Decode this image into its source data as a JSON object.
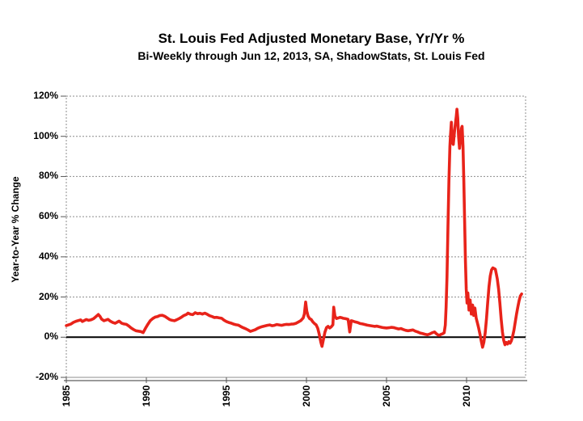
{
  "chart_data": {
    "type": "line",
    "title": "St. Louis Fed Adjusted Monetary Base, Yr/Yr %",
    "subtitle": "Bi-Weekly through Jun 12, 2013, SA, ShadowStats, St. Louis Fed",
    "ylabel": "Year-to-Year % Change",
    "xlabel": "",
    "x_ticks": [
      1985,
      1990,
      1995,
      2000,
      2005,
      2010
    ],
    "y_ticks": [
      "120%",
      "100%",
      "80%",
      "60%",
      "40%",
      "20%",
      "0%",
      "-20%"
    ],
    "y_tick_values": [
      120,
      100,
      80,
      60,
      40,
      20,
      0,
      -20
    ],
    "ylim": [
      -20,
      120
    ],
    "xlim": [
      1985,
      2013.7
    ],
    "grid": "horizontal dotted gray lines every 20%, solid black zero line, dotted frame",
    "legend": "none",
    "line_color": "#e8231a",
    "zero_line_color": "#000000",
    "series": [
      {
        "name": "St. Louis Fed Adjusted Monetary Base, Yr/Yr % Change",
        "points": [
          [
            1985.0,
            5.8
          ],
          [
            1985.15,
            6.2
          ],
          [
            1985.3,
            6.6
          ],
          [
            1985.45,
            7.4
          ],
          [
            1985.6,
            7.9
          ],
          [
            1985.75,
            8.3
          ],
          [
            1985.9,
            8.6
          ],
          [
            1986.0,
            7.8
          ],
          [
            1986.1,
            8.2
          ],
          [
            1986.25,
            8.8
          ],
          [
            1986.4,
            8.4
          ],
          [
            1986.55,
            8.7
          ],
          [
            1986.7,
            9.2
          ],
          [
            1986.85,
            10.2
          ],
          [
            1987.0,
            11.3
          ],
          [
            1987.1,
            10.4
          ],
          [
            1987.2,
            9.0
          ],
          [
            1987.35,
            8.2
          ],
          [
            1987.5,
            8.6
          ],
          [
            1987.6,
            8.9
          ],
          [
            1987.75,
            8.0
          ],
          [
            1987.9,
            7.3
          ],
          [
            1988.05,
            6.9
          ],
          [
            1988.2,
            7.6
          ],
          [
            1988.3,
            8.0
          ],
          [
            1988.45,
            7.0
          ],
          [
            1988.6,
            6.6
          ],
          [
            1988.75,
            6.4
          ],
          [
            1988.9,
            5.6
          ],
          [
            1989.05,
            4.6
          ],
          [
            1989.2,
            3.8
          ],
          [
            1989.35,
            3.2
          ],
          [
            1989.5,
            3.0
          ],
          [
            1989.65,
            2.8
          ],
          [
            1989.8,
            2.3
          ],
          [
            1989.95,
            4.5
          ],
          [
            1990.1,
            6.5
          ],
          [
            1990.25,
            8.3
          ],
          [
            1990.4,
            9.3
          ],
          [
            1990.55,
            10.0
          ],
          [
            1990.7,
            10.3
          ],
          [
            1990.85,
            10.8
          ],
          [
            1991.0,
            10.9
          ],
          [
            1991.15,
            10.4
          ],
          [
            1991.3,
            9.6
          ],
          [
            1991.45,
            8.8
          ],
          [
            1991.6,
            8.4
          ],
          [
            1991.75,
            8.2
          ],
          [
            1991.9,
            8.7
          ],
          [
            1992.05,
            9.3
          ],
          [
            1992.2,
            10.0
          ],
          [
            1992.35,
            10.8
          ],
          [
            1992.5,
            11.3
          ],
          [
            1992.6,
            12.0
          ],
          [
            1992.75,
            11.4
          ],
          [
            1992.9,
            11.2
          ],
          [
            1993.05,
            12.2
          ],
          [
            1993.2,
            11.7
          ],
          [
            1993.35,
            11.9
          ],
          [
            1993.5,
            11.5
          ],
          [
            1993.65,
            12.0
          ],
          [
            1993.8,
            11.4
          ],
          [
            1993.95,
            10.7
          ],
          [
            1994.1,
            10.3
          ],
          [
            1994.25,
            9.8
          ],
          [
            1994.4,
            9.9
          ],
          [
            1994.55,
            9.6
          ],
          [
            1994.7,
            9.4
          ],
          [
            1994.85,
            8.5
          ],
          [
            1995.0,
            7.8
          ],
          [
            1995.15,
            7.3
          ],
          [
            1995.3,
            7.0
          ],
          [
            1995.45,
            6.5
          ],
          [
            1995.6,
            6.2
          ],
          [
            1995.75,
            6.0
          ],
          [
            1995.9,
            5.3
          ],
          [
            1996.05,
            4.7
          ],
          [
            1996.2,
            4.2
          ],
          [
            1996.35,
            3.6
          ],
          [
            1996.5,
            2.9
          ],
          [
            1996.65,
            3.3
          ],
          [
            1996.8,
            3.7
          ],
          [
            1996.95,
            4.4
          ],
          [
            1997.1,
            4.9
          ],
          [
            1997.25,
            5.3
          ],
          [
            1997.4,
            5.6
          ],
          [
            1997.55,
            5.9
          ],
          [
            1997.7,
            6.1
          ],
          [
            1997.85,
            5.7
          ],
          [
            1998.0,
            5.9
          ],
          [
            1998.15,
            6.3
          ],
          [
            1998.3,
            6.1
          ],
          [
            1998.45,
            5.9
          ],
          [
            1998.6,
            6.2
          ],
          [
            1998.75,
            6.4
          ],
          [
            1998.9,
            6.3
          ],
          [
            1999.05,
            6.5
          ],
          [
            1999.2,
            6.6
          ],
          [
            1999.35,
            6.9
          ],
          [
            1999.5,
            7.6
          ],
          [
            1999.65,
            8.3
          ],
          [
            1999.8,
            9.6
          ],
          [
            1999.87,
            11.5
          ],
          [
            1999.95,
            17.5
          ],
          [
            2000.02,
            13.0
          ],
          [
            2000.1,
            10.5
          ],
          [
            2000.2,
            9.2
          ],
          [
            2000.3,
            8.8
          ],
          [
            2000.4,
            7.6
          ],
          [
            2000.5,
            6.8
          ],
          [
            2000.6,
            6.2
          ],
          [
            2000.7,
            4.5
          ],
          [
            2000.8,
            1.5
          ],
          [
            2000.9,
            -2.5
          ],
          [
            2000.97,
            -4.6
          ],
          [
            2001.05,
            -1.5
          ],
          [
            2001.15,
            2.5
          ],
          [
            2001.25,
            4.8
          ],
          [
            2001.35,
            5.4
          ],
          [
            2001.45,
            4.6
          ],
          [
            2001.55,
            5.2
          ],
          [
            2001.65,
            6.2
          ],
          [
            2001.7,
            14.9
          ],
          [
            2001.78,
            10.5
          ],
          [
            2001.88,
            9.3
          ],
          [
            2002.0,
            9.6
          ],
          [
            2002.1,
            9.9
          ],
          [
            2002.2,
            9.7
          ],
          [
            2002.3,
            9.4
          ],
          [
            2002.45,
            9.2
          ],
          [
            2002.6,
            8.9
          ],
          [
            2002.7,
            2.6
          ],
          [
            2002.8,
            8.2
          ],
          [
            2002.9,
            8.0
          ],
          [
            2003.05,
            7.6
          ],
          [
            2003.2,
            7.3
          ],
          [
            2003.35,
            6.8
          ],
          [
            2003.5,
            6.6
          ],
          [
            2003.65,
            6.3
          ],
          [
            2003.8,
            6.0
          ],
          [
            2003.95,
            5.8
          ],
          [
            2004.1,
            5.6
          ],
          [
            2004.25,
            5.4
          ],
          [
            2004.4,
            5.5
          ],
          [
            2004.55,
            5.2
          ],
          [
            2004.7,
            4.9
          ],
          [
            2004.85,
            4.7
          ],
          [
            2005.0,
            4.6
          ],
          [
            2005.15,
            4.7
          ],
          [
            2005.3,
            4.9
          ],
          [
            2005.45,
            4.8
          ],
          [
            2005.6,
            4.4
          ],
          [
            2005.75,
            4.1
          ],
          [
            2005.9,
            4.3
          ],
          [
            2006.05,
            3.8
          ],
          [
            2006.2,
            3.4
          ],
          [
            2006.35,
            3.2
          ],
          [
            2006.5,
            3.4
          ],
          [
            2006.65,
            3.6
          ],
          [
            2006.8,
            3.0
          ],
          [
            2006.95,
            2.6
          ],
          [
            2007.1,
            2.1
          ],
          [
            2007.25,
            1.8
          ],
          [
            2007.4,
            1.5
          ],
          [
            2007.55,
            1.2
          ],
          [
            2007.7,
            1.6
          ],
          [
            2007.85,
            2.2
          ],
          [
            2008.0,
            2.6
          ],
          [
            2008.1,
            1.8
          ],
          [
            2008.2,
            1.2
          ],
          [
            2008.3,
            0.9
          ],
          [
            2008.4,
            1.4
          ],
          [
            2008.5,
            1.7
          ],
          [
            2008.6,
            2.2
          ],
          [
            2008.67,
            6.0
          ],
          [
            2008.72,
            15.0
          ],
          [
            2008.78,
            30.0
          ],
          [
            2008.84,
            55.0
          ],
          [
            2008.9,
            78.0
          ],
          [
            2008.96,
            95.0
          ],
          [
            2009.0,
            101.0
          ],
          [
            2009.05,
            107.0
          ],
          [
            2009.1,
            97.0
          ],
          [
            2009.17,
            96.0
          ],
          [
            2009.24,
            102.0
          ],
          [
            2009.3,
            106.0
          ],
          [
            2009.36,
            110.0
          ],
          [
            2009.4,
            113.5
          ],
          [
            2009.45,
            109.0
          ],
          [
            2009.5,
            100.0
          ],
          [
            2009.56,
            94.0
          ],
          [
            2009.62,
            99.0
          ],
          [
            2009.68,
            104.0
          ],
          [
            2009.72,
            105.0
          ],
          [
            2009.78,
            95.0
          ],
          [
            2009.83,
            78.0
          ],
          [
            2009.88,
            58.0
          ],
          [
            2009.93,
            38.0
          ],
          [
            2009.98,
            24.0
          ],
          [
            2010.03,
            17.0
          ],
          [
            2010.08,
            22.0
          ],
          [
            2010.15,
            13.5
          ],
          [
            2010.22,
            18.5
          ],
          [
            2010.3,
            11.5
          ],
          [
            2010.38,
            16.0
          ],
          [
            2010.45,
            10.8
          ],
          [
            2010.52,
            14.5
          ],
          [
            2010.6,
            9.5
          ],
          [
            2010.68,
            7.0
          ],
          [
            2010.76,
            4.5
          ],
          [
            2010.84,
            1.5
          ],
          [
            2010.92,
            -2.0
          ],
          [
            2011.0,
            -5.0
          ],
          [
            2011.08,
            -2.5
          ],
          [
            2011.16,
            2.0
          ],
          [
            2011.24,
            9.0
          ],
          [
            2011.32,
            17.0
          ],
          [
            2011.4,
            25.0
          ],
          [
            2011.48,
            30.5
          ],
          [
            2011.56,
            33.5
          ],
          [
            2011.64,
            34.5
          ],
          [
            2011.72,
            34.2
          ],
          [
            2011.8,
            33.8
          ],
          [
            2011.86,
            31.5
          ],
          [
            2011.92,
            29.0
          ],
          [
            2012.0,
            24.0
          ],
          [
            2012.08,
            17.0
          ],
          [
            2012.16,
            9.0
          ],
          [
            2012.24,
            2.5
          ],
          [
            2012.32,
            -1.5
          ],
          [
            2012.4,
            -3.8
          ],
          [
            2012.48,
            -2.6
          ],
          [
            2012.56,
            -3.4
          ],
          [
            2012.64,
            -2.2
          ],
          [
            2012.72,
            -3.0
          ],
          [
            2012.8,
            -1.8
          ],
          [
            2012.88,
            0.5
          ],
          [
            2012.96,
            3.5
          ],
          [
            2013.04,
            7.5
          ],
          [
            2013.12,
            11.5
          ],
          [
            2013.2,
            15.0
          ],
          [
            2013.28,
            18.0
          ],
          [
            2013.36,
            20.5
          ],
          [
            2013.44,
            21.5
          ]
        ]
      }
    ]
  }
}
